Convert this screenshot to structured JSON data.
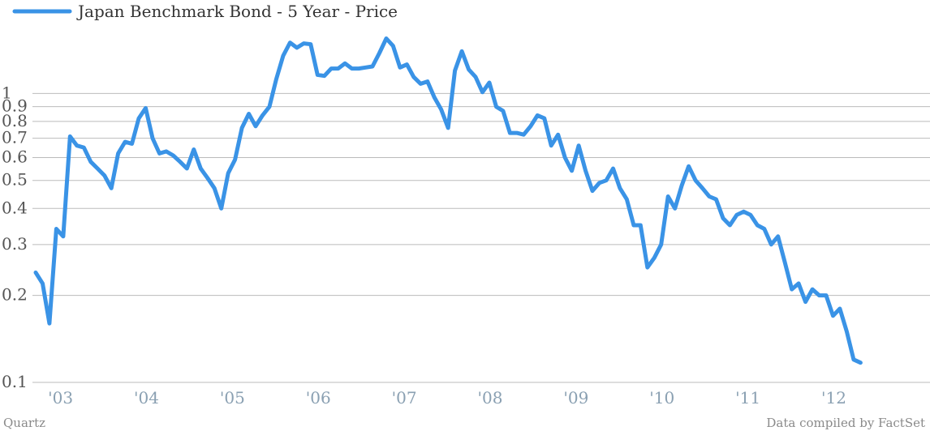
{
  "legend": {
    "label": "Japan Benchmark Bond - 5 Year - Price",
    "color": "#3a93e6"
  },
  "footer": {
    "left": "Quartz",
    "right": "Data compiled by FactSet"
  },
  "chart_data": {
    "type": "line",
    "title": "",
    "xlabel": "",
    "ylabel": "",
    "y_scale": "log",
    "ylim": [
      0.1,
      2.0
    ],
    "grid": true,
    "legend_position": "top-left",
    "y_ticks": [
      {
        "value": 0.1,
        "label": "0.1"
      },
      {
        "value": 0.2,
        "label": "0.2"
      },
      {
        "value": 0.3,
        "label": "0.3"
      },
      {
        "value": 0.4,
        "label": "0.4"
      },
      {
        "value": 0.5,
        "label": "0.5"
      },
      {
        "value": 0.6,
        "label": "0.6"
      },
      {
        "value": 0.7,
        "label": "0.7"
      },
      {
        "value": 0.8,
        "label": "0.8"
      },
      {
        "value": 0.9,
        "label": "0.9"
      },
      {
        "value": 1.0,
        "label": "1"
      }
    ],
    "x_ticks": [
      {
        "value": 2003.0,
        "label": "'03"
      },
      {
        "value": 2004.0,
        "label": "'04"
      },
      {
        "value": 2005.0,
        "label": "'05"
      },
      {
        "value": 2006.0,
        "label": "'06"
      },
      {
        "value": 2007.0,
        "label": "'07"
      },
      {
        "value": 2008.0,
        "label": "'08"
      },
      {
        "value": 2009.0,
        "label": "'09"
      },
      {
        "value": 2010.0,
        "label": "'10"
      },
      {
        "value": 2011.0,
        "label": "'11"
      },
      {
        "value": 2012.0,
        "label": "'12"
      }
    ],
    "xlim": [
      2002.72,
      2012.77
    ],
    "series": [
      {
        "color": "#3a93e6",
        "points": [
          [
            2002.72,
            0.24
          ],
          [
            2002.8,
            0.22
          ],
          [
            2002.88,
            0.16
          ],
          [
            2002.96,
            0.34
          ],
          [
            2003.04,
            0.32
          ],
          [
            2003.12,
            0.71
          ],
          [
            2003.2,
            0.66
          ],
          [
            2003.28,
            0.65
          ],
          [
            2003.36,
            0.58
          ],
          [
            2003.44,
            0.55
          ],
          [
            2003.52,
            0.52
          ],
          [
            2003.6,
            0.47
          ],
          [
            2003.68,
            0.62
          ],
          [
            2003.76,
            0.68
          ],
          [
            2003.84,
            0.67
          ],
          [
            2003.92,
            0.82
          ],
          [
            2004.0,
            0.89
          ],
          [
            2004.08,
            0.7
          ],
          [
            2004.16,
            0.62
          ],
          [
            2004.24,
            0.63
          ],
          [
            2004.32,
            0.61
          ],
          [
            2004.4,
            0.58
          ],
          [
            2004.48,
            0.55
          ],
          [
            2004.56,
            0.64
          ],
          [
            2004.64,
            0.55
          ],
          [
            2004.72,
            0.51
          ],
          [
            2004.8,
            0.47
          ],
          [
            2004.88,
            0.4
          ],
          [
            2004.96,
            0.53
          ],
          [
            2005.04,
            0.59
          ],
          [
            2005.12,
            0.76
          ],
          [
            2005.2,
            0.85
          ],
          [
            2005.28,
            0.77
          ],
          [
            2005.36,
            0.84
          ],
          [
            2005.44,
            0.9
          ],
          [
            2005.52,
            1.12
          ],
          [
            2005.6,
            1.35
          ],
          [
            2005.68,
            1.5
          ],
          [
            2005.76,
            1.44
          ],
          [
            2005.84,
            1.49
          ],
          [
            2005.92,
            1.48
          ],
          [
            2006.0,
            1.16
          ],
          [
            2006.08,
            1.15
          ],
          [
            2006.16,
            1.22
          ],
          [
            2006.24,
            1.22
          ],
          [
            2006.32,
            1.27
          ],
          [
            2006.4,
            1.22
          ],
          [
            2006.48,
            1.22
          ],
          [
            2006.56,
            1.23
          ],
          [
            2006.64,
            1.24
          ],
          [
            2006.72,
            1.38
          ],
          [
            2006.8,
            1.55
          ],
          [
            2006.88,
            1.46
          ],
          [
            2006.96,
            1.23
          ],
          [
            2007.04,
            1.26
          ],
          [
            2007.12,
            1.14
          ],
          [
            2007.2,
            1.08
          ],
          [
            2007.28,
            1.1
          ],
          [
            2007.36,
            0.97
          ],
          [
            2007.44,
            0.88
          ],
          [
            2007.52,
            0.76
          ],
          [
            2007.6,
            1.2
          ],
          [
            2007.68,
            1.4
          ],
          [
            2007.76,
            1.21
          ],
          [
            2007.84,
            1.14
          ],
          [
            2007.92,
            1.01
          ],
          [
            2008.0,
            1.09
          ],
          [
            2008.08,
            0.9
          ],
          [
            2008.16,
            0.87
          ],
          [
            2008.24,
            0.73
          ],
          [
            2008.32,
            0.73
          ],
          [
            2008.4,
            0.72
          ],
          [
            2008.48,
            0.77
          ],
          [
            2008.56,
            0.84
          ],
          [
            2008.64,
            0.82
          ],
          [
            2008.72,
            0.66
          ],
          [
            2008.8,
            0.72
          ],
          [
            2008.88,
            0.6
          ],
          [
            2008.96,
            0.54
          ],
          [
            2009.04,
            0.66
          ],
          [
            2009.12,
            0.54
          ],
          [
            2009.2,
            0.46
          ],
          [
            2009.28,
            0.49
          ],
          [
            2009.36,
            0.5
          ],
          [
            2009.44,
            0.55
          ],
          [
            2009.52,
            0.47
          ],
          [
            2009.6,
            0.43
          ],
          [
            2009.68,
            0.35
          ],
          [
            2009.76,
            0.35
          ],
          [
            2009.84,
            0.25
          ],
          [
            2009.92,
            0.27
          ],
          [
            2010.0,
            0.3
          ],
          [
            2010.08,
            0.44
          ],
          [
            2010.16,
            0.4
          ],
          [
            2010.24,
            0.48
          ],
          [
            2010.32,
            0.56
          ],
          [
            2010.4,
            0.5
          ],
          [
            2010.48,
            0.47
          ],
          [
            2010.56,
            0.44
          ],
          [
            2010.64,
            0.43
          ],
          [
            2010.72,
            0.37
          ],
          [
            2010.8,
            0.35
          ],
          [
            2010.88,
            0.38
          ],
          [
            2010.96,
            0.39
          ],
          [
            2011.04,
            0.38
          ],
          [
            2011.12,
            0.35
          ],
          [
            2011.2,
            0.34
          ],
          [
            2011.28,
            0.3
          ],
          [
            2011.36,
            0.32
          ],
          [
            2011.44,
            0.26
          ],
          [
            2011.52,
            0.21
          ],
          [
            2011.6,
            0.22
          ],
          [
            2011.68,
            0.19
          ],
          [
            2011.76,
            0.21
          ],
          [
            2011.84,
            0.2
          ],
          [
            2011.92,
            0.2
          ],
          [
            2012.0,
            0.17
          ],
          [
            2012.08,
            0.18
          ],
          [
            2012.16,
            0.15
          ],
          [
            2012.24,
            0.12
          ],
          [
            2012.32,
            0.117
          ]
        ]
      }
    ]
  }
}
